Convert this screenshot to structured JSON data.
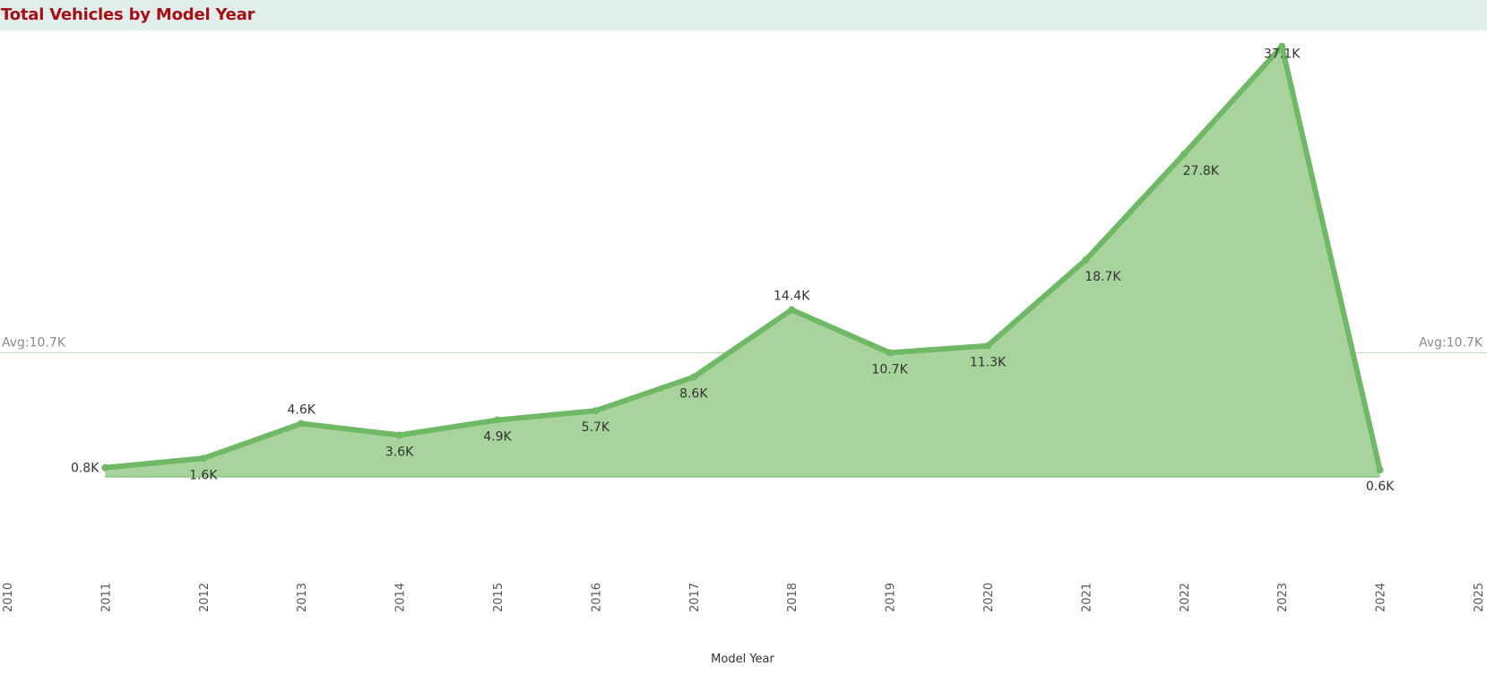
{
  "title": "Total Vehicles by Model Year",
  "chart_data": {
    "type": "area",
    "title": "Total Vehicles by Model Year",
    "xlabel": "Model Year",
    "ylabel": "",
    "x": [
      2011,
      2012,
      2013,
      2014,
      2015,
      2016,
      2017,
      2018,
      2019,
      2020,
      2021,
      2022,
      2023,
      2024
    ],
    "values": [
      0.8,
      1.6,
      4.6,
      3.6,
      4.9,
      5.7,
      8.6,
      14.4,
      10.7,
      11.3,
      18.7,
      27.8,
      37.1,
      0.6
    ],
    "value_labels": [
      "0.8K",
      "1.6K",
      "4.6K",
      "3.6K",
      "4.9K",
      "5.7K",
      "8.6K",
      "14.4K",
      "10.7K",
      "11.3K",
      "18.7K",
      "27.8K",
      "37.1K",
      "0.6K"
    ],
    "unit": "K",
    "x_ticks": [
      2010,
      2011,
      2012,
      2013,
      2014,
      2015,
      2016,
      2017,
      2018,
      2019,
      2020,
      2021,
      2022,
      2023,
      2024,
      2025
    ],
    "xlim": [
      2010,
      2025
    ],
    "ylim": [
      -10,
      38
    ],
    "reference_line": {
      "label": "Avg:10.7K",
      "value": 10.7
    },
    "grid": false,
    "color_line": "#6fb865",
    "color_fill": "#a8d39c",
    "color_avg": "#b9ddb1",
    "color_title": "#a50f15"
  }
}
